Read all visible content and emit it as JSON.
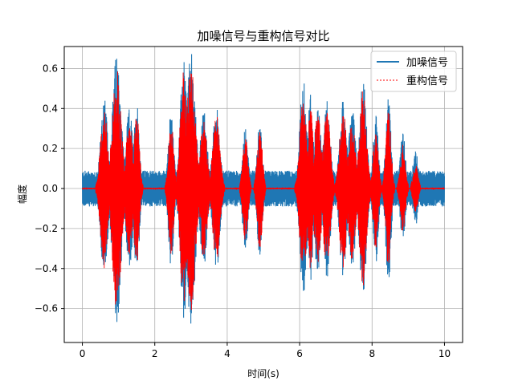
{
  "chart_data": {
    "type": "line",
    "title": "加噪信号与重构信号对比",
    "xlabel": "时间(s)",
    "ylabel": "幅度",
    "xlim": [
      -0.5,
      10.5
    ],
    "ylim": [
      -0.77,
      0.71
    ],
    "xticks": [
      0,
      2,
      4,
      6,
      8,
      10
    ],
    "yticks": [
      -0.6,
      -0.4,
      -0.2,
      0.0,
      0.2,
      0.4,
      0.6
    ],
    "xtick_labels": [
      "0",
      "2",
      "4",
      "6",
      "8",
      "10"
    ],
    "ytick_labels": [
      "−0.6",
      "−0.4",
      "−0.2",
      "0.0",
      "0.2",
      "0.4",
      "0.6"
    ],
    "grid": true,
    "legend_position": "top-right",
    "series": [
      {
        "name": "加噪信号",
        "color": "#1f77b4",
        "style": "solid",
        "noise_floor": 0.09
      },
      {
        "name": "重构信号",
        "color": "#ff0000",
        "style": "dashed"
      }
    ],
    "segments": [
      {
        "t": 0.6,
        "width": 0.2,
        "amp_noisy": 0.46,
        "amp_clean": 0.4
      },
      {
        "t": 0.95,
        "width": 0.25,
        "amp_noisy": 0.68,
        "amp_clean": 0.62
      },
      {
        "t": 1.3,
        "width": 0.2,
        "amp_noisy": 0.4,
        "amp_clean": 0.34
      },
      {
        "t": 1.5,
        "width": 0.15,
        "amp_noisy": 0.45,
        "amp_clean": 0.4
      },
      {
        "t": 2.45,
        "width": 0.15,
        "amp_noisy": 0.4,
        "amp_clean": 0.34
      },
      {
        "t": 2.8,
        "width": 0.2,
        "amp_noisy": 0.65,
        "amp_clean": 0.6
      },
      {
        "t": 3.0,
        "width": 0.25,
        "amp_noisy": 0.68,
        "amp_clean": 0.64
      },
      {
        "t": 3.35,
        "width": 0.2,
        "amp_noisy": 0.4,
        "amp_clean": 0.34
      },
      {
        "t": 3.7,
        "width": 0.2,
        "amp_noisy": 0.42,
        "amp_clean": 0.38
      },
      {
        "t": 4.5,
        "width": 0.15,
        "amp_noisy": 0.32,
        "amp_clean": 0.26
      },
      {
        "t": 4.9,
        "width": 0.15,
        "amp_noisy": 0.34,
        "amp_clean": 0.3
      },
      {
        "t": 6.1,
        "width": 0.2,
        "amp_noisy": 0.55,
        "amp_clean": 0.45
      },
      {
        "t": 6.3,
        "width": 0.15,
        "amp_noisy": 0.48,
        "amp_clean": 0.42
      },
      {
        "t": 6.5,
        "width": 0.2,
        "amp_noisy": 0.42,
        "amp_clean": 0.38
      },
      {
        "t": 6.75,
        "width": 0.2,
        "amp_noisy": 0.45,
        "amp_clean": 0.4
      },
      {
        "t": 7.2,
        "width": 0.2,
        "amp_noisy": 0.44,
        "amp_clean": 0.4
      },
      {
        "t": 7.45,
        "width": 0.2,
        "amp_noisy": 0.4,
        "amp_clean": 0.36
      },
      {
        "t": 7.75,
        "width": 0.2,
        "amp_noisy": 0.55,
        "amp_clean": 0.5
      },
      {
        "t": 8.1,
        "width": 0.15,
        "amp_noisy": 0.38,
        "amp_clean": 0.3
      },
      {
        "t": 8.45,
        "width": 0.15,
        "amp_noisy": 0.48,
        "amp_clean": 0.4
      },
      {
        "t": 8.85,
        "width": 0.15,
        "amp_noisy": 0.28,
        "amp_clean": 0.22
      },
      {
        "t": 9.2,
        "width": 0.15,
        "amp_noisy": 0.2,
        "amp_clean": 0.12
      }
    ]
  }
}
